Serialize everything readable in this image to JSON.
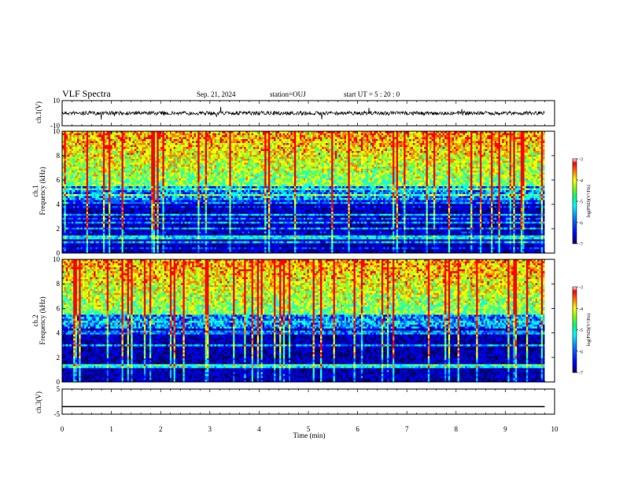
{
  "header": {
    "title": "VLF Spectra",
    "date": "Sep. 21, 2024",
    "station": "station=OUJ",
    "start": "start  UT =  5 : 20 : 0"
  },
  "colors": {
    "axis": "#000000",
    "trace": "#000000",
    "colormap": [
      "#00007f",
      "#0000ff",
      "#007fff",
      "#00ffff",
      "#7fff7f",
      "#ffff00",
      "#ff7f00",
      "#ff0000",
      "#7f0000"
    ]
  },
  "chart_data": [
    {
      "type": "line",
      "id": "ch1",
      "ylabel": "ch.1(V)",
      "ylim": [
        -10,
        10
      ],
      "yticks": [
        "10",
        "-10"
      ],
      "series": [
        {
          "x": [
            0,
            9.8
          ],
          "y": [
            0,
            0
          ]
        }
      ],
      "note_visible": "noisy waveform around 0 V"
    },
    {
      "type": "heatmap",
      "id": "ch1spec",
      "ylabel": "ch.1\nFrequency (kHz)",
      "ylim": [
        0,
        10
      ],
      "yticks": [
        "0",
        "2",
        "4",
        "6",
        "8",
        "10"
      ],
      "colorbar": {
        "label": "log(PSD)(V²/Hz)",
        "ticks": [
          "-3",
          "-4",
          "-5",
          "-6",
          "-7"
        ],
        "range": [
          -7,
          -3
        ]
      }
    },
    {
      "type": "heatmap",
      "id": "ch2spec",
      "ylabel": "ch.2\nFrequency (kHz)",
      "ylim": [
        0,
        10
      ],
      "yticks": [
        "0",
        "2",
        "4",
        "6",
        "8",
        "10"
      ],
      "colorbar": {
        "label": "log(PSD)(V²/Hz)",
        "ticks": [
          "-3",
          "-4",
          "-5",
          "-6",
          "-7"
        ],
        "range": [
          -7,
          -3
        ]
      }
    },
    {
      "type": "line",
      "id": "ch3",
      "ylabel": "ch.3(V)",
      "ylim": [
        -5,
        5
      ],
      "yticks": [
        "5",
        "-5"
      ],
      "series": [
        {
          "x": [
            0,
            9.8
          ],
          "y": [
            -2,
            -2
          ]
        }
      ]
    }
  ],
  "xaxis": {
    "label": "Time  (min)",
    "ticks": [
      "0",
      "1",
      "2",
      "3",
      "4",
      "5",
      "6",
      "7",
      "8",
      "9",
      "10"
    ],
    "xlim": [
      0,
      10
    ]
  }
}
